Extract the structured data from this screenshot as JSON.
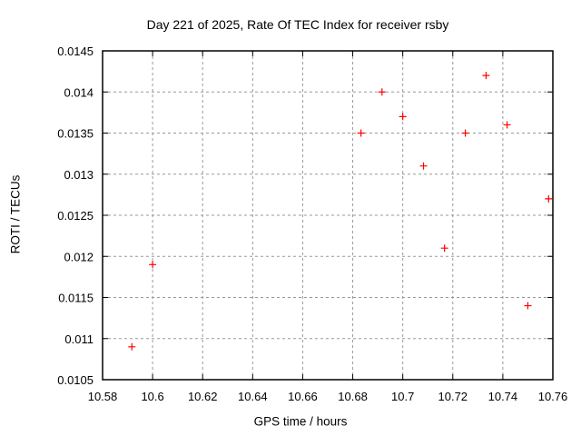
{
  "chart_data": {
    "type": "scatter",
    "title": "Day 221 of 2025, Rate Of TEC Index for receiver rsby",
    "xlabel": "GPS time / hours",
    "ylabel": "ROTI / TECUs",
    "xlim": [
      10.58,
      10.76
    ],
    "ylim": [
      0.0105,
      0.0145
    ],
    "x_tick_values": [
      10.58,
      10.6,
      10.62,
      10.64,
      10.66,
      10.68,
      10.7,
      10.72,
      10.74,
      10.76
    ],
    "x_tick_labels": [
      "10.58",
      "10.6",
      "10.62",
      "10.64",
      "10.66",
      "10.68",
      "10.7",
      "10.72",
      "10.74",
      "10.76"
    ],
    "y_tick_values": [
      0.0105,
      0.011,
      0.0115,
      0.012,
      0.0125,
      0.013,
      0.0135,
      0.014,
      0.0145
    ],
    "y_tick_labels": [
      "0.0105",
      "0.011",
      "0.0115",
      "0.012",
      "0.0125",
      "0.013",
      "0.0135",
      "0.014",
      "0.0145"
    ],
    "grid": true,
    "legend_position": "none",
    "marker_shape": "plus",
    "series": [
      {
        "name": "ROTI",
        "points": [
          [
            10.5917,
            0.0109
          ],
          [
            10.6,
            0.0119
          ],
          [
            10.6833,
            0.0135
          ],
          [
            10.6917,
            0.014
          ],
          [
            10.7,
            0.0137
          ],
          [
            10.7083,
            0.0131
          ],
          [
            10.7167,
            0.0121
          ],
          [
            10.725,
            0.0135
          ],
          [
            10.7333,
            0.0142
          ],
          [
            10.7417,
            0.0136
          ],
          [
            10.75,
            0.0114
          ],
          [
            10.7583,
            0.0127
          ]
        ]
      }
    ],
    "colors": {
      "marker": "#ff0000",
      "grid": "#999999",
      "axis": "#000000",
      "background": "#ffffff"
    }
  }
}
